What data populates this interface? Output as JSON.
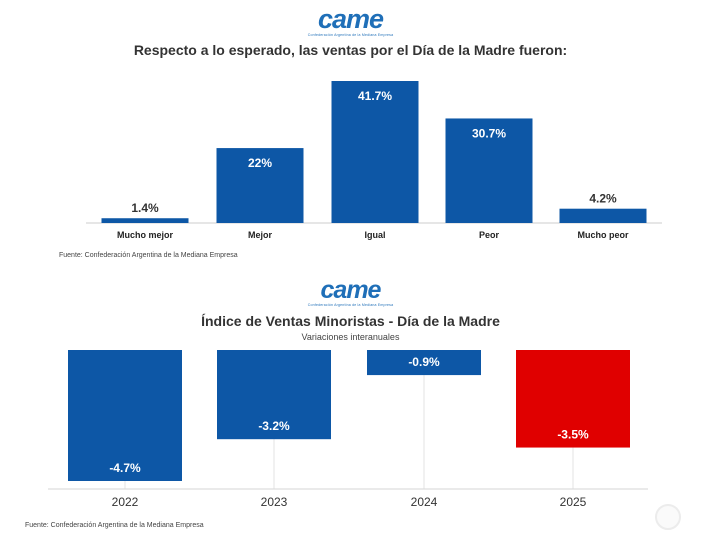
{
  "logo": {
    "text": "came",
    "subtitle": "Confederación Argentina de la Mediana Empresa"
  },
  "chart1": {
    "title": "Respecto a lo esperado, las ventas por el Día de la Madre fueron:",
    "source": "Fuente: Confederación Argentina de la Mediana Empresa"
  },
  "chart2": {
    "title": "Índice de Ventas Minoristas - Día de la Madre",
    "subtitle": "Variaciones interanuales",
    "source": "Fuente: Confederación Argentina de la Mediana Empresa"
  },
  "colors": {
    "blue": "#0d57a6",
    "red": "#e00000",
    "brand": "#1f6fb8"
  },
  "chart_data": [
    {
      "type": "bar",
      "title": "Respecto a lo esperado, las ventas por el Día de la Madre fueron:",
      "categories": [
        "Mucho mejor",
        "Mejor",
        "Igual",
        "Peor",
        "Mucho peor"
      ],
      "values": [
        1.4,
        22,
        41.7,
        30.7,
        4.2
      ],
      "labels": [
        "1.4%",
        "22%",
        "41.7%",
        "30.7%",
        "4.2%"
      ],
      "ylim": [
        0,
        41.7
      ],
      "xlabel": "",
      "ylabel": ""
    },
    {
      "type": "bar",
      "title": "Índice de Ventas Minoristas - Día de la Madre",
      "subtitle": "Variaciones interanuales",
      "categories": [
        "2022",
        "2023",
        "2024",
        "2025"
      ],
      "values": [
        -4.7,
        -3.2,
        -0.9,
        -3.5
      ],
      "labels": [
        "-4.7%",
        "-3.2%",
        "-0.9%",
        "-3.5%"
      ],
      "highlight": "2025",
      "ylim": [
        -4.7,
        0
      ],
      "xlabel": "",
      "ylabel": ""
    }
  ]
}
